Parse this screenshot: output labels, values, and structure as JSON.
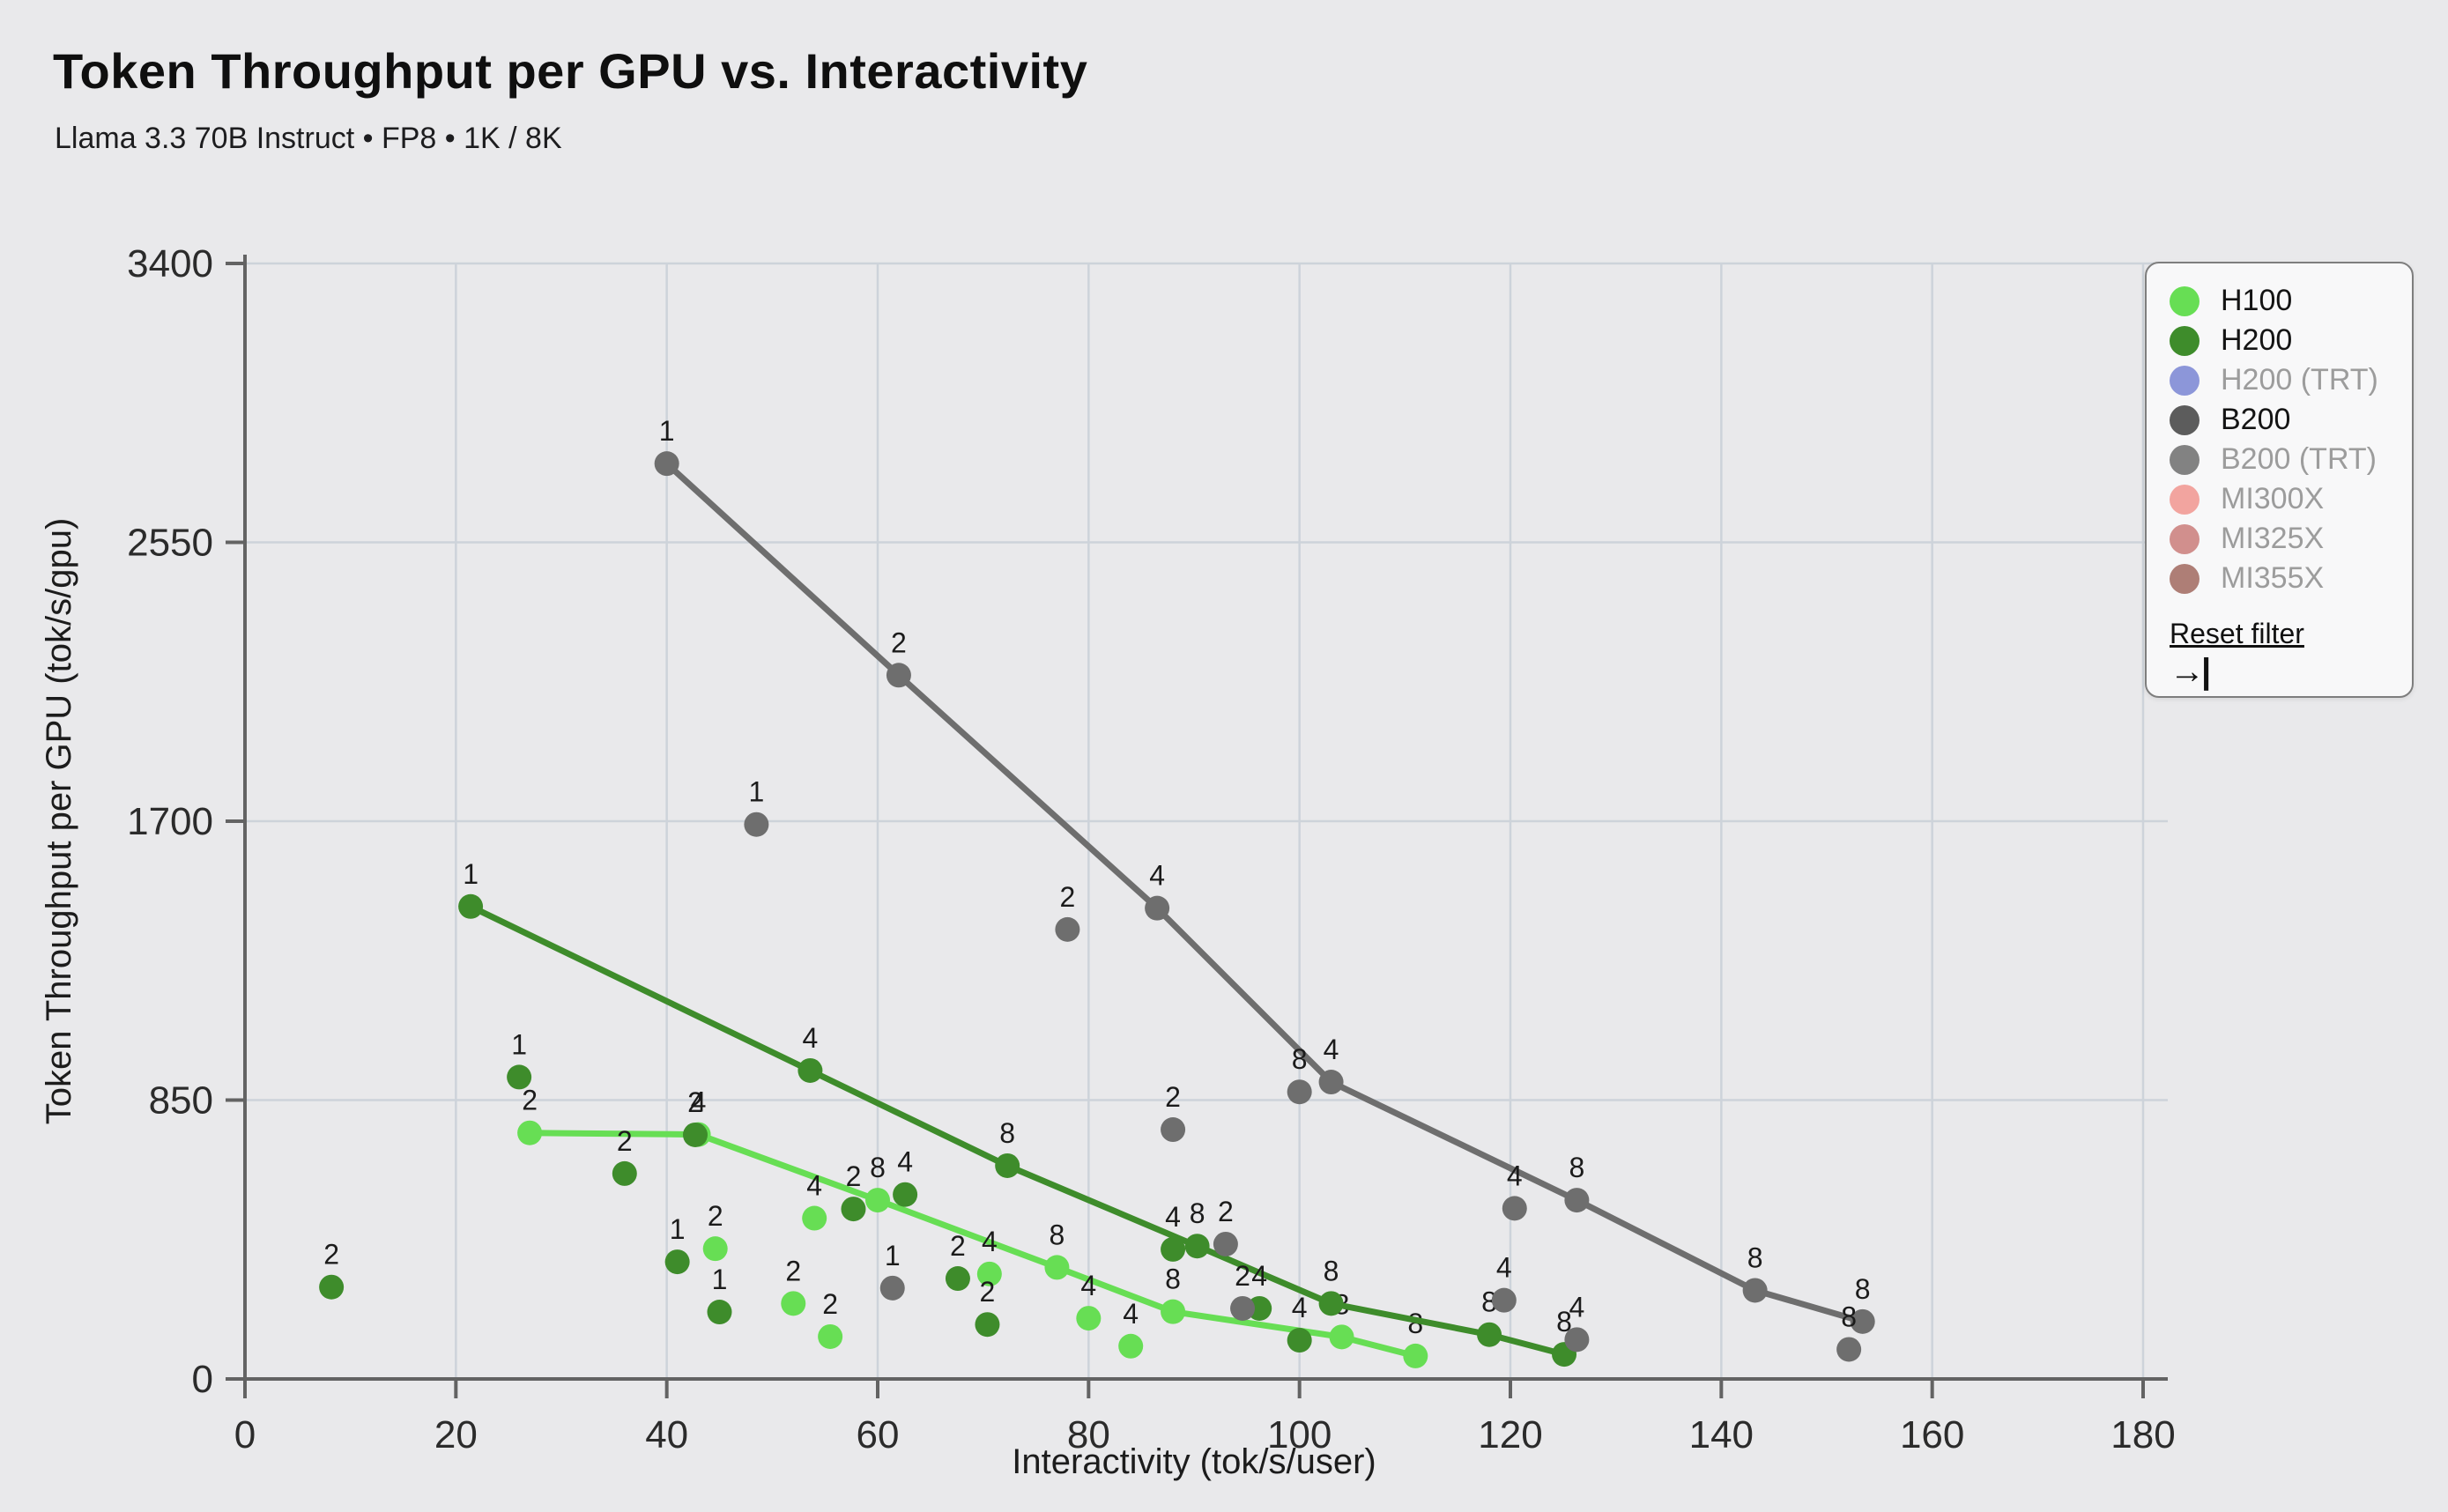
{
  "page": {
    "title": "Token Throughput per GPU vs. Interactivity",
    "subtitle": "Llama 3.3 70B Instruct • FP8 • 1K / 8K"
  },
  "chart_data": {
    "type": "scatter",
    "title": "Token Throughput per GPU vs. Interactivity",
    "xlabel": "Interactivity (tok/s/user)",
    "ylabel": "Token Throughput per GPU (tok/s/gpu)",
    "xlim": [
      0,
      180
    ],
    "ylim": [
      0,
      3400
    ],
    "xticks": [
      0,
      20,
      40,
      60,
      80,
      100,
      120,
      140,
      160,
      180
    ],
    "yticks": [
      0,
      850,
      1700,
      2550,
      3400
    ],
    "grid": true,
    "point_label_meaning": "GPU count per configuration",
    "series": [
      {
        "name": "H100",
        "color": "#67DE54",
        "line": [
          [
            27,
            750,
            "2"
          ],
          [
            43,
            745,
            "4"
          ],
          [
            60,
            545,
            "8"
          ],
          [
            77,
            340,
            "8"
          ],
          [
            88,
            205,
            "8"
          ],
          [
            104,
            128,
            "8"
          ],
          [
            111,
            70,
            "8"
          ]
        ],
        "scatter": [
          [
            44.6,
            397,
            "2"
          ],
          [
            52,
            230,
            "2"
          ],
          [
            55.5,
            129,
            "2"
          ],
          [
            54,
            490,
            "4"
          ],
          [
            70.6,
            320,
            "4"
          ],
          [
            80,
            185,
            "4"
          ],
          [
            84,
            100,
            "4"
          ]
        ]
      },
      {
        "name": "H200",
        "color": "#3E8C2B",
        "line": [
          [
            21.4,
            1440,
            "1"
          ],
          [
            53.6,
            940,
            "4"
          ],
          [
            72.3,
            650,
            "8"
          ],
          [
            90.3,
            405,
            "8"
          ],
          [
            103,
            230,
            "8"
          ],
          [
            118,
            135,
            "8"
          ],
          [
            125.1,
            75,
            "8"
          ]
        ],
        "scatter": [
          [
            8.2,
            280,
            "2"
          ],
          [
            26,
            920,
            "1"
          ],
          [
            36,
            626,
            "2"
          ],
          [
            41,
            357,
            "1"
          ],
          [
            42.7,
            744,
            "2"
          ],
          [
            45,
            204,
            "1"
          ],
          [
            57.7,
            518,
            "2"
          ],
          [
            62.6,
            562,
            "4"
          ],
          [
            67.6,
            306,
            "2"
          ],
          [
            70.4,
            166,
            "2"
          ],
          [
            88,
            395,
            "4"
          ],
          [
            96.2,
            215,
            "4"
          ],
          [
            100,
            118,
            "4"
          ]
        ]
      },
      {
        "name": "B200",
        "color": "#6E6E6E",
        "line": [
          [
            40,
            2790,
            "1"
          ],
          [
            62,
            2145,
            "2"
          ],
          [
            86.5,
            1435,
            "4"
          ],
          [
            103,
            905,
            "4"
          ],
          [
            126.3,
            545,
            "8"
          ],
          [
            143.2,
            270,
            "8"
          ],
          [
            153.4,
            175,
            "8"
          ]
        ],
        "scatter": [
          [
            48.5,
            1690,
            "1"
          ],
          [
            61.4,
            277,
            "1"
          ],
          [
            78,
            1370,
            "2"
          ],
          [
            88,
            760,
            "2"
          ],
          [
            93,
            411,
            "2"
          ],
          [
            94.6,
            215,
            "2"
          ],
          [
            100,
            875,
            "8"
          ],
          [
            119.4,
            240,
            "4"
          ],
          [
            120.4,
            520,
            "4"
          ],
          [
            126.3,
            120,
            "4"
          ],
          [
            152.1,
            90,
            "8"
          ]
        ]
      }
    ]
  },
  "legend": {
    "items": [
      {
        "label": "H100",
        "color": "#67DE54",
        "active": true
      },
      {
        "label": "H200",
        "color": "#3E8C2B",
        "active": true
      },
      {
        "label": "H200 (TRT)",
        "color": "#8C96D9",
        "active": false
      },
      {
        "label": "B200",
        "color": "#5C5C5C",
        "active": true
      },
      {
        "label": "B200 (TRT)",
        "color": "#828282",
        "active": false
      },
      {
        "label": "MI300X",
        "color": "#F2A49F",
        "active": false
      },
      {
        "label": "MI325X",
        "color": "#D18F8D",
        "active": false
      },
      {
        "label": "MI355X",
        "color": "#AE7E76",
        "active": false
      }
    ],
    "reset_label": "Reset filter",
    "reset_icon": "→|"
  },
  "style": {
    "background": "#e9e9eb",
    "gridline_color": "#cdd3da",
    "axis_color": "#636363",
    "tick_text_color": "#2b2b2b",
    "point_label_color": "#1b1b1b"
  }
}
